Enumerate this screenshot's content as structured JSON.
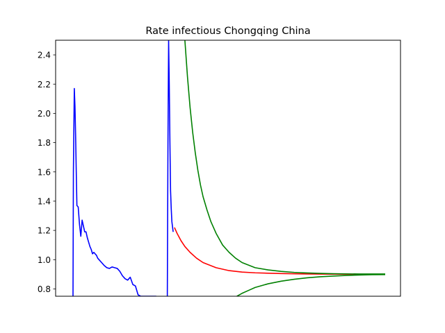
{
  "chart_data": {
    "type": "line",
    "title": "Rate infectious Chongqing China",
    "xlabel": "",
    "ylabel": "",
    "x_ticks_shown": false,
    "xlim": [
      0,
      240
    ],
    "ylim": [
      0.75,
      2.5
    ],
    "y_ticks": [
      0.8,
      1.0,
      1.2,
      1.4,
      1.6,
      1.8,
      2.0,
      2.2,
      2.4
    ],
    "y_tick_labels": [
      "0.8",
      "1.0",
      "1.2",
      "1.4",
      "1.6",
      "1.8",
      "2.0",
      "2.2",
      "2.4"
    ],
    "grid": false,
    "colors": {
      "blue": "#0000ff",
      "red": "#ff0000",
      "green": "#008000"
    },
    "series": [
      {
        "color": "#0000ff",
        "x": [
          0,
          0.3,
          1,
          1.5,
          2,
          2.5,
          3,
          4,
          5,
          6,
          7,
          8,
          9,
          10,
          11,
          12,
          13,
          14,
          15,
          16,
          17,
          18,
          19,
          20,
          22,
          24,
          26,
          28,
          30,
          32,
          34,
          36,
          38,
          40,
          42,
          44,
          46,
          48,
          50,
          52,
          54,
          55,
          56,
          57,
          58,
          59,
          60,
          61,
          62,
          63,
          64
        ],
        "y": [
          0.75,
          1.6,
          2.17,
          2.05,
          1.85,
          1.6,
          1.37,
          1.36,
          1.24,
          1.16,
          1.27,
          1.23,
          1.19,
          1.19,
          1.15,
          1.12,
          1.09,
          1.07,
          1.04,
          1.05,
          1.04,
          1.03,
          1.01,
          1.0,
          0.98,
          0.96,
          0.945,
          0.94,
          0.95,
          0.945,
          0.94,
          0.92,
          0.89,
          0.87,
          0.86,
          0.88,
          0.83,
          0.82,
          0.76,
          0.75,
          0.75,
          0.75,
          0.75,
          0.75,
          0.75,
          0.75,
          0.75,
          0.75,
          0.75,
          0.75,
          0.75
        ]
      },
      {
        "color": "#0000ff",
        "x": [
          72.5,
          73,
          73.5,
          74,
          74.5,
          75,
          75.5,
          76,
          77
        ],
        "y": [
          0.75,
          1.8,
          2.5,
          2.2,
          1.8,
          1.47,
          1.35,
          1.26,
          1.19
        ]
      },
      {
        "color": "#ff0000",
        "x": [
          78,
          80,
          83,
          86,
          90,
          95,
          100,
          110,
          120,
          130,
          140,
          160,
          180,
          200,
          220,
          240
        ],
        "y": [
          1.22,
          1.18,
          1.13,
          1.09,
          1.05,
          1.01,
          0.98,
          0.945,
          0.925,
          0.915,
          0.91,
          0.905,
          0.902,
          0.901,
          0.9,
          0.9
        ]
      },
      {
        "color": "#008000",
        "x": [
          86,
          88,
          90,
          92,
          94,
          96,
          98,
          100,
          103,
          106,
          110,
          115,
          120,
          125,
          130,
          140,
          150,
          160,
          170,
          180,
          190,
          200,
          210,
          220,
          230,
          240
        ],
        "y": [
          2.5,
          2.25,
          2.04,
          1.87,
          1.73,
          1.61,
          1.51,
          1.43,
          1.34,
          1.26,
          1.18,
          1.1,
          1.05,
          1.01,
          0.98,
          0.945,
          0.93,
          0.92,
          0.913,
          0.909,
          0.906,
          0.904,
          0.903,
          0.902,
          0.902,
          0.902
        ]
      },
      {
        "color": "#008000",
        "x": [
          126,
          130,
          135,
          140,
          150,
          160,
          170,
          180,
          190,
          200,
          210,
          220,
          230,
          240
        ],
        "y": [
          0.75,
          0.77,
          0.79,
          0.81,
          0.835,
          0.853,
          0.866,
          0.876,
          0.883,
          0.888,
          0.892,
          0.895,
          0.897,
          0.898
        ]
      }
    ]
  }
}
